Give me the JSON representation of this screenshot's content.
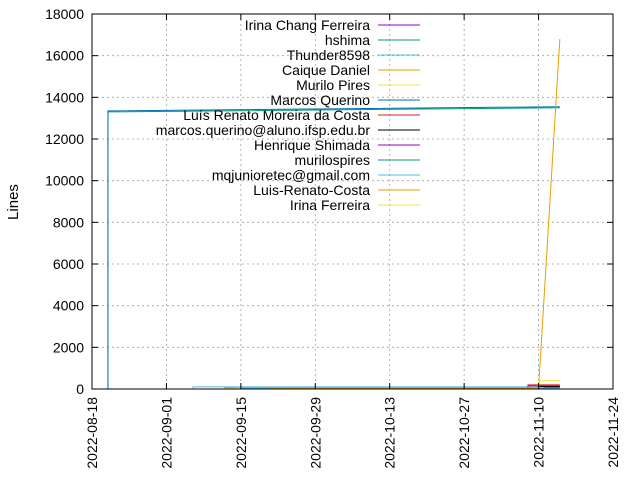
{
  "chart_data": {
    "type": "line",
    "title": "",
    "xlabel": "",
    "ylabel": "Lines",
    "ylim": [
      0,
      18000
    ],
    "xlim": [
      "2022-08-18",
      "2022-11-24"
    ],
    "y_ticks": [
      "0",
      "2000",
      "4000",
      "6000",
      "8000",
      "10000",
      "12000",
      "14000",
      "16000",
      "18000"
    ],
    "x_ticks": [
      "2022-08-18",
      "2022-09-01",
      "2022-09-15",
      "2022-09-29",
      "2022-10-13",
      "2022-10-27",
      "2022-11-10",
      "2022-11-24"
    ],
    "grid": true,
    "legend_position": "top-right",
    "series": [
      {
        "name": "Irina Chang Ferreira",
        "color": "#9400d3",
        "points": [
          [
            "2022-11-08",
            0
          ],
          [
            "2022-11-08",
            150
          ],
          [
            "2022-11-14",
            150
          ]
        ]
      },
      {
        "name": "hshima",
        "color": "#009e73",
        "points": [
          [
            "2022-08-21",
            0
          ],
          [
            "2022-08-21",
            13300
          ],
          [
            "2022-11-14",
            13500
          ]
        ]
      },
      {
        "name": "Thunder8598",
        "color": "#56b4e9",
        "points": [
          [
            "2022-09-06",
            0
          ],
          [
            "2022-09-06",
            100
          ],
          [
            "2022-11-14",
            100
          ]
        ]
      },
      {
        "name": "Caique Daniel",
        "color": "#e69f00",
        "points": [
          [
            "2022-09-12",
            0
          ],
          [
            "2022-09-12",
            60
          ],
          [
            "2022-11-14",
            60
          ]
        ]
      },
      {
        "name": "Murilo Pires",
        "color": "#f0e442",
        "points": [
          [
            "2022-09-14",
            0
          ],
          [
            "2022-09-14",
            40
          ],
          [
            "2022-11-14",
            40
          ]
        ]
      },
      {
        "name": "Marcos Querino",
        "color": "#0072b2",
        "points": [
          [
            "2022-08-21",
            0
          ],
          [
            "2022-08-21",
            13350
          ],
          [
            "2022-11-14",
            13550
          ]
        ]
      },
      {
        "name": "Luís Renato Moreira da Costa",
        "color": "#e51e10",
        "points": [
          [
            "2022-11-08",
            0
          ],
          [
            "2022-11-08",
            200
          ],
          [
            "2022-11-14",
            200
          ]
        ]
      },
      {
        "name": "marcos.querino@aluno.ifsp.edu.br",
        "color": "#000000",
        "points": [
          [
            "2022-11-10",
            0
          ],
          [
            "2022-11-10",
            120
          ],
          [
            "2022-11-14",
            120
          ]
        ]
      },
      {
        "name": "Henrique Shimada",
        "color": "#9400d3",
        "points": [
          [
            "2022-11-11",
            0
          ],
          [
            "2022-11-11",
            80
          ],
          [
            "2022-11-14",
            80
          ]
        ]
      },
      {
        "name": "murilospires",
        "color": "#009e73",
        "points": [
          [
            "2022-09-18",
            0
          ],
          [
            "2022-09-18",
            30
          ],
          [
            "2022-11-14",
            30
          ]
        ]
      },
      {
        "name": "mqjunioretec@gmail.com",
        "color": "#56b4e9",
        "points": [
          [
            "2022-09-15",
            0
          ],
          [
            "2022-09-15",
            50
          ],
          [
            "2022-11-14",
            50
          ]
        ]
      },
      {
        "name": "Luis-Renato-Costa",
        "color": "#e69f00",
        "points": [
          [
            "2022-09-20",
            0
          ],
          [
            "2022-09-20",
            20
          ],
          [
            "2022-11-10",
            50
          ],
          [
            "2022-11-14",
            16800
          ]
        ]
      },
      {
        "name": "Irina Ferreira",
        "color": "#f0e442",
        "points": [
          [
            "2022-11-10",
            0
          ],
          [
            "2022-11-10",
            400
          ],
          [
            "2022-11-14",
            400
          ]
        ]
      }
    ]
  }
}
